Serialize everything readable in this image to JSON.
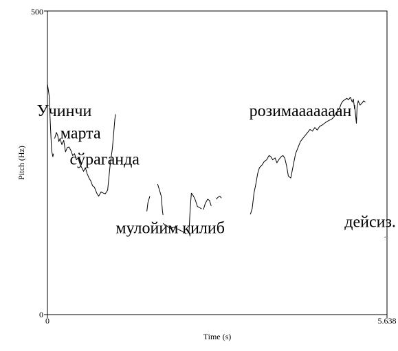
{
  "chart_data": {
    "type": "line",
    "title": "",
    "xlabel": "Time (s)",
    "ylabel": "Pitch (Hz)",
    "xlim": [
      0,
      5.638
    ],
    "ylim": [
      0,
      500
    ],
    "x_ticks": [
      "0",
      "5.638"
    ],
    "y_ticks": [
      "0",
      "500"
    ],
    "grid": false,
    "series": [
      {
        "points": [
          [
            0.0,
            380
          ],
          [
            0.03,
            360
          ],
          [
            0.05,
            310
          ],
          [
            0.07,
            270
          ],
          [
            0.09,
            260
          ],
          [
            0.1,
            265
          ]
        ]
      },
      {
        "points": [
          [
            0.12,
            290
          ],
          [
            0.15,
            300
          ],
          [
            0.17,
            295
          ],
          [
            0.19,
            285
          ],
          [
            0.21,
            290
          ],
          [
            0.24,
            280
          ],
          [
            0.27,
            287
          ],
          [
            0.3,
            268
          ],
          [
            0.33,
            275
          ],
          [
            0.36,
            276
          ],
          [
            0.39,
            270
          ],
          [
            0.42,
            262
          ],
          [
            0.45,
            265
          ],
          [
            0.48,
            255
          ],
          [
            0.51,
            258
          ],
          [
            0.54,
            248
          ],
          [
            0.57,
            242
          ],
          [
            0.6,
            236
          ],
          [
            0.63,
            242
          ],
          [
            0.66,
            232
          ],
          [
            0.69,
            225
          ],
          [
            0.72,
            220
          ],
          [
            0.75,
            212
          ],
          [
            0.78,
            210
          ],
          [
            0.82,
            200
          ],
          [
            0.85,
            195
          ],
          [
            0.89,
            202
          ],
          [
            0.93,
            200
          ],
          [
            0.96,
            199
          ],
          [
            1.0,
            205
          ],
          [
            1.04,
            245
          ],
          [
            1.08,
            275
          ],
          [
            1.12,
            322
          ],
          [
            1.13,
            330
          ]
        ]
      },
      {
        "points": [
          [
            1.65,
            170
          ],
          [
            1.67,
            185
          ],
          [
            1.7,
            195
          ]
        ]
      },
      {
        "points": [
          [
            1.83,
            215
          ],
          [
            1.86,
            205
          ],
          [
            1.89,
            195
          ],
          [
            1.9,
            182
          ],
          [
            1.91,
            170
          ],
          [
            1.92,
            164
          ]
        ]
      },
      {
        "points": [
          [
            1.92,
            150
          ],
          [
            1.97,
            147
          ],
          [
            2.04,
            142
          ],
          [
            2.1,
            144
          ],
          [
            2.16,
            141
          ],
          [
            2.22,
            138
          ],
          [
            2.27,
            135
          ],
          [
            2.31,
            133
          ]
        ]
      },
      {
        "points": [
          [
            2.35,
            135
          ],
          [
            2.37,
            175
          ],
          [
            2.39,
            200
          ],
          [
            2.42,
            196
          ],
          [
            2.45,
            190
          ],
          [
            2.49,
            178
          ],
          [
            2.53,
            176
          ],
          [
            2.56,
            174
          ]
        ]
      },
      {
        "points": [
          [
            2.59,
            173
          ],
          [
            2.62,
            183
          ],
          [
            2.66,
            190
          ],
          [
            2.69,
            188
          ],
          [
            2.72,
            179
          ]
        ]
      },
      {
        "points": [
          [
            2.8,
            190
          ],
          [
            2.83,
            193
          ],
          [
            2.86,
            195
          ],
          [
            2.89,
            192
          ]
        ]
      },
      {
        "points": [
          [
            3.37,
            165
          ],
          [
            3.4,
            175
          ],
          [
            3.43,
            200
          ],
          [
            3.46,
            215
          ],
          [
            3.49,
            232
          ],
          [
            3.52,
            242
          ],
          [
            3.56,
            246
          ],
          [
            3.6,
            252
          ],
          [
            3.64,
            255
          ],
          [
            3.68,
            262
          ],
          [
            3.71,
            260
          ],
          [
            3.74,
            255
          ],
          [
            3.78,
            258
          ],
          [
            3.81,
            250
          ],
          [
            3.84,
            255
          ],
          [
            3.88,
            260
          ],
          [
            3.91,
            262
          ],
          [
            3.94,
            258
          ],
          [
            3.97,
            245
          ],
          [
            4.0,
            228
          ],
          [
            4.04,
            225
          ],
          [
            4.08,
            245
          ],
          [
            4.12,
            265
          ],
          [
            4.16,
            275
          ],
          [
            4.2,
            285
          ],
          [
            4.24,
            290
          ],
          [
            4.28,
            295
          ],
          [
            4.32,
            300
          ],
          [
            4.36,
            305
          ],
          [
            4.4,
            302
          ],
          [
            4.44,
            308
          ],
          [
            4.48,
            304
          ],
          [
            4.52,
            310
          ],
          [
            4.56,
            312
          ],
          [
            4.6,
            315
          ],
          [
            4.64,
            318
          ],
          [
            4.68,
            320
          ],
          [
            4.72,
            322
          ],
          [
            4.76,
            326
          ],
          [
            4.79,
            332
          ],
          [
            4.82,
            336
          ],
          [
            4.85,
            340
          ],
          [
            4.88,
            348
          ],
          [
            4.91,
            352
          ],
          [
            4.94,
            354
          ],
          [
            4.97,
            356
          ],
          [
            5.0,
            354
          ],
          [
            5.03,
            358
          ],
          [
            5.06,
            350
          ],
          [
            5.08,
            355
          ],
          [
            5.1,
            338
          ]
        ]
      },
      {
        "points": [
          [
            5.1,
            345
          ],
          [
            5.12,
            325
          ],
          [
            5.13,
            315
          ],
          [
            5.14,
            340
          ],
          [
            5.16,
            352
          ],
          [
            5.19,
            345
          ],
          [
            5.22,
            348
          ],
          [
            5.25,
            352
          ],
          [
            5.28,
            350
          ]
        ]
      },
      {
        "points": [
          [
            5.6,
            127
          ],
          [
            5.61,
            128
          ]
        ]
      }
    ],
    "annotations": [
      {
        "text": "Учинчи",
        "x": 0.28,
        "y": 327
      },
      {
        "text": "марта",
        "x": 0.55,
        "y": 290
      },
      {
        "text": "сўраганда",
        "x": 0.95,
        "y": 247
      },
      {
        "text": "мулойим қилиб",
        "x": 2.04,
        "y": 134
      },
      {
        "text": "розимааааааан",
        "x": 4.2,
        "y": 327
      },
      {
        "text": "дейсиз.",
        "x": 5.36,
        "y": 144
      }
    ]
  }
}
